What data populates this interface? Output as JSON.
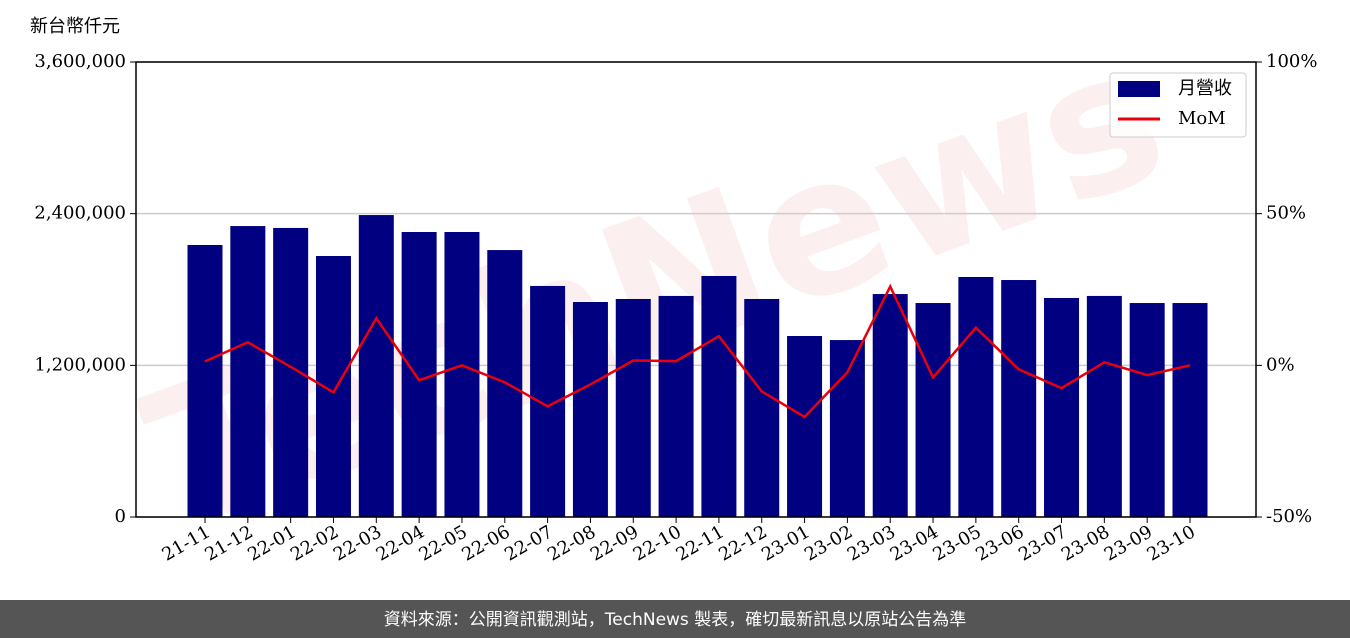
{
  "chart_data": {
    "type": "bar_line",
    "ylabel": "新台幣仟元",
    "watermark": "TechNews",
    "footer": "資料來源：公開資訊觀測站，TechNews 製表，確切最新訊息以原站公告為準",
    "categories": [
      "21-11",
      "21-12",
      "22-01",
      "22-02",
      "22-03",
      "22-04",
      "22-05",
      "22-06",
      "22-07",
      "22-08",
      "22-09",
      "22-10",
      "22-11",
      "22-12",
      "23-01",
      "23-02",
      "23-03",
      "23-04",
      "23-05",
      "23-06",
      "23-07",
      "23-08",
      "23-09",
      "23-10"
    ],
    "series": [
      {
        "name": "月營收",
        "type": "bar",
        "color": "#000080",
        "values": [
          2152000,
          2302000,
          2287000,
          2065000,
          2389000,
          2255000,
          2255000,
          2112000,
          1828000,
          1701000,
          1725000,
          1749000,
          1907000,
          1725000,
          1432000,
          1400000,
          1764000,
          1693000,
          1899000,
          1875000,
          1733000,
          1749000,
          1693000,
          1693000
        ]
      },
      {
        "name": "MoM",
        "type": "line",
        "axis": "y2",
        "color": "#e8000b",
        "values": [
          1.3,
          7.6,
          -0.5,
          -8.9,
          15.5,
          -4.9,
          0,
          -5.6,
          -13.5,
          -6.3,
          1.6,
          1.4,
          9.6,
          -8.6,
          -17,
          -2.3,
          26,
          -4.0,
          12.4,
          -1.3,
          -7.5,
          1.0,
          -3.2,
          0
        ]
      }
    ],
    "ylim": [
      0,
      3600000
    ],
    "yticks": [
      0,
      {
        "value": 1200000,
        "label": "1,200,000"
      },
      {
        "value": 2400000,
        "label": "2,400,000"
      },
      {
        "value": 3600000,
        "label": "3,600,000"
      }
    ],
    "y2lim": [
      -50,
      100
    ],
    "y2ticks": [
      {
        "value": -50,
        "label": "-50%"
      },
      {
        "value": 0,
        "label": "0%"
      },
      {
        "value": 50,
        "label": "50%"
      },
      {
        "value": 100,
        "label": "100%"
      }
    ],
    "grid": true,
    "legend": "upper right"
  }
}
